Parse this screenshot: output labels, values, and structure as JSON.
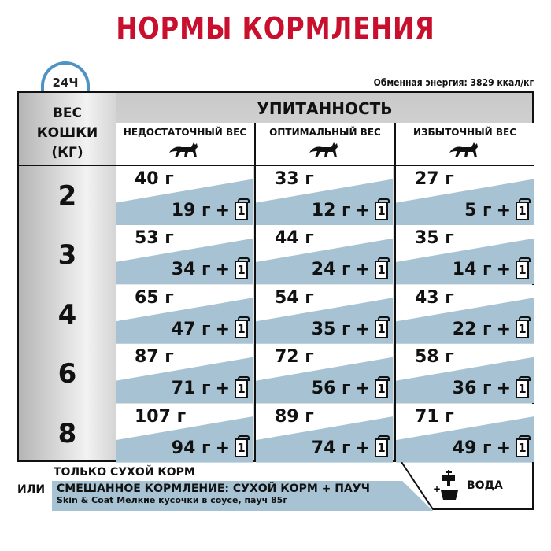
{
  "title": "НОРМЫ КОРМЛЕНИЯ",
  "clock_label": "24Ч",
  "energy": "Обменная энергия: 3829 ккал/кг",
  "weight_header": [
    "ВЕС",
    "КОШКИ",
    "(КГ)"
  ],
  "bcs_header": "УПИТАННОСТЬ",
  "columns": [
    "НЕДОСТАТОЧНЫЙ ВЕС",
    "ОПТИМАЛЬНЫЙ ВЕС",
    "ИЗБЫТОЧНЫЙ ВЕС"
  ],
  "pouch_count": "1",
  "plus": "+",
  "rows": [
    {
      "weight": "2",
      "cells": [
        {
          "dry": "40 г",
          "mix": "19 г"
        },
        {
          "dry": "33 г",
          "mix": "12 г"
        },
        {
          "dry": "27 г",
          "mix": "5 г"
        }
      ]
    },
    {
      "weight": "3",
      "cells": [
        {
          "dry": "53 г",
          "mix": "34 г"
        },
        {
          "dry": "44 г",
          "mix": "24 г"
        },
        {
          "dry": "35 г",
          "mix": "14 г"
        }
      ]
    },
    {
      "weight": "4",
      "cells": [
        {
          "dry": "65 г",
          "mix": "47 г"
        },
        {
          "dry": "54 г",
          "mix": "35 г"
        },
        {
          "dry": "43 г",
          "mix": "22 г"
        }
      ]
    },
    {
      "weight": "6",
      "cells": [
        {
          "dry": "87 г",
          "mix": "71 г"
        },
        {
          "dry": "72 г",
          "mix": "56 г"
        },
        {
          "dry": "58 г",
          "mix": "36 г"
        }
      ]
    },
    {
      "weight": "8",
      "cells": [
        {
          "dry": "107 г",
          "mix": "94 г"
        },
        {
          "dry": "89 г",
          "mix": "74 г"
        },
        {
          "dry": "71 г",
          "mix": "49 г"
        }
      ]
    }
  ],
  "legend": {
    "dry_only": "ТОЛЬКО СУХОЙ КОРМ",
    "or": "ИЛИ",
    "mixed": "СМЕШАННОЕ КОРМЛЕНИЕ: СУХОЙ КОРМ + ПАУЧ",
    "product": "Skin & Coat Мелкие кусочки в соусе, пауч 85г",
    "water": "ВОДА"
  },
  "colors": {
    "title": "#c8102e",
    "blue": "#a7c3d3",
    "clock": "#4f93c4"
  }
}
